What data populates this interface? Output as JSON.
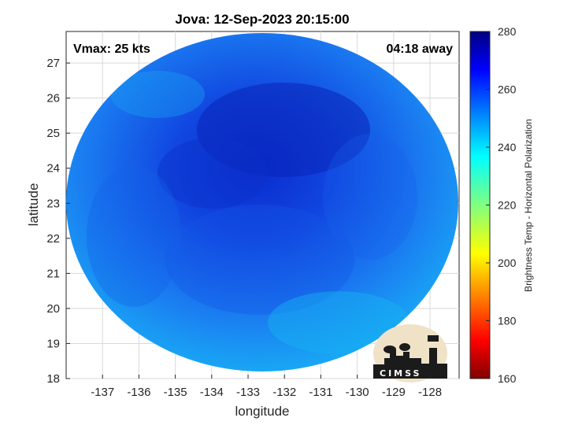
{
  "chart_data": {
    "type": "heatmap",
    "title": "Jova: 12-Sep-2023 20:15:00",
    "xlabel": "longitude",
    "ylabel": "latitude",
    "xlim": [
      -138,
      -127.2
    ],
    "ylim": [
      18,
      27.9
    ],
    "xticks": [
      -137,
      -136,
      -135,
      -134,
      -133,
      -132,
      -131,
      -130,
      -129,
      -128
    ],
    "yticks": [
      18,
      19,
      20,
      21,
      22,
      23,
      24,
      25,
      26,
      27
    ],
    "grid": true,
    "annotations": {
      "left": "Vmax: 25 kts",
      "right": "04:18 away"
    },
    "colorbar": {
      "label": "Brightness Temp - Horizontal Polarization",
      "range": [
        160,
        280
      ],
      "ticks": [
        160,
        180,
        200,
        220,
        240,
        260,
        280
      ],
      "colormap": "jet"
    },
    "scene": {
      "dominant_value_range": [
        245,
        270
      ],
      "swath_shape": "circular"
    }
  },
  "logo": {
    "text": "CIMSS"
  },
  "colors": {
    "background": "#ffffff",
    "grid": "#d9d9d9",
    "axis": "#262626"
  }
}
